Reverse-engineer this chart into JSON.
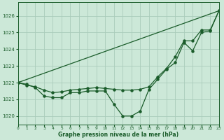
{
  "title": "Graphe pression niveau de la mer (hPa)",
  "bg_color": "#cce8d8",
  "grid_color": "#aaccbb",
  "line_color": "#1a5c2a",
  "x_min": 0,
  "x_max": 23,
  "y_min": 1019.5,
  "y_max": 1026.8,
  "yticks": [
    1020,
    1021,
    1022,
    1023,
    1024,
    1025,
    1026
  ],
  "xticks": [
    0,
    1,
    2,
    3,
    4,
    5,
    6,
    7,
    8,
    9,
    10,
    11,
    12,
    13,
    14,
    15,
    16,
    17,
    18,
    19,
    20,
    21,
    22,
    23
  ],
  "series1_x": [
    0,
    1,
    2,
    3,
    4,
    5,
    6,
    7,
    8,
    9,
    10,
    11,
    12,
    13,
    14,
    15,
    16,
    17,
    18,
    19,
    20,
    21,
    22,
    23
  ],
  "series1_y": [
    1022.0,
    1021.9,
    1021.7,
    1021.2,
    1021.1,
    1021.1,
    1021.4,
    1021.4,
    1021.5,
    1021.5,
    1021.5,
    1020.7,
    1020.0,
    1020.0,
    1020.3,
    1021.6,
    1022.2,
    1022.8,
    1023.2,
    1024.4,
    1023.9,
    1025.0,
    1025.1,
    1026.3
  ],
  "series2_x": [
    0,
    1,
    2,
    3,
    4,
    5,
    6,
    7,
    8,
    9,
    10,
    11,
    12,
    13,
    14,
    15,
    16,
    17,
    18,
    19,
    20,
    21,
    22,
    23
  ],
  "series2_y": [
    1022.0,
    1021.85,
    1021.75,
    1021.55,
    1021.4,
    1021.45,
    1021.55,
    1021.6,
    1021.65,
    1021.7,
    1021.65,
    1021.6,
    1021.55,
    1021.55,
    1021.6,
    1021.75,
    1022.35,
    1022.85,
    1023.55,
    1024.5,
    1024.5,
    1025.15,
    1025.15,
    1026.3
  ],
  "series3_x": [
    0,
    23
  ],
  "series3_y": [
    1022.0,
    1026.3
  ]
}
